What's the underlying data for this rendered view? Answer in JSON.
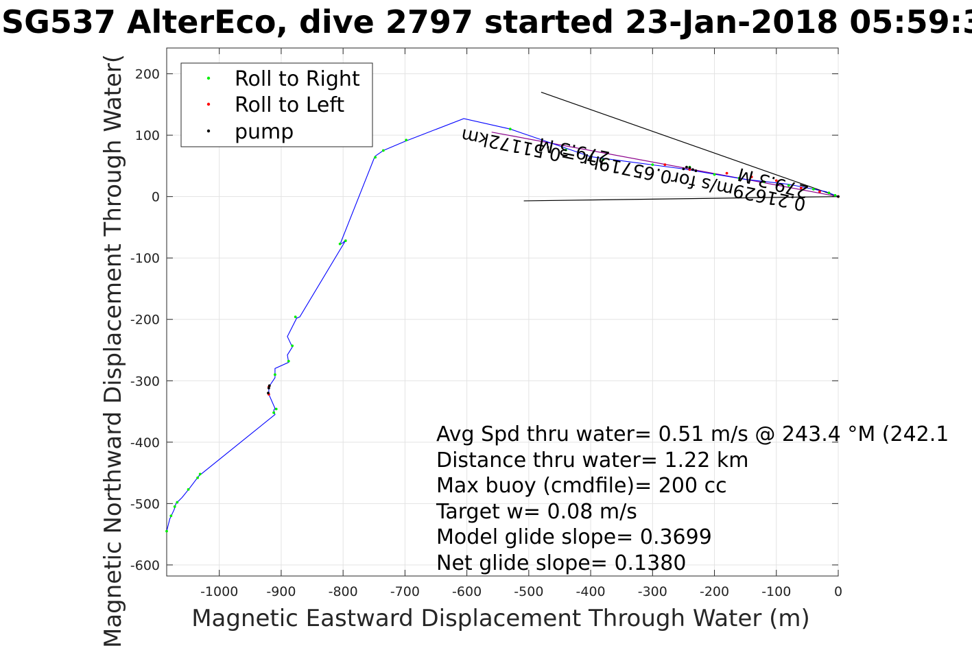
{
  "chart_data": {
    "type": "line",
    "title": "SG537 AlterEco, dive 2797 started 23-Jan-2018 05:59:3",
    "xlabel": "Magnetic Eastward Displacement Through Water (m)",
    "ylabel": "Magnetic Northward Displacement Through Water(",
    "xlim": [
      -1085,
      0
    ],
    "ylim": [
      -618,
      242
    ],
    "xticks": [
      -1000,
      -900,
      -800,
      -700,
      -600,
      -500,
      -400,
      -300,
      -200,
      -100,
      0
    ],
    "xtick_labels": [
      "-1000",
      "-900",
      "-800",
      "-700",
      "-600",
      "-500",
      "-400",
      "-300",
      "-200",
      "-100",
      "0"
    ],
    "yticks": [
      200,
      100,
      0,
      -100,
      -200,
      -300,
      -400,
      -500,
      -600
    ],
    "ytick_labels": [
      "200",
      "100",
      "0",
      "-100",
      "-200",
      "-300",
      "-400",
      "-500",
      "-600"
    ],
    "grid": true,
    "legend": {
      "placement": "top-left",
      "entries": [
        {
          "name": "Roll to Right",
          "color": "#00ee00"
        },
        {
          "name": "Roll to Left",
          "color": "#ff0000"
        },
        {
          "name": "pump",
          "color": "#000000"
        }
      ]
    },
    "track": {
      "color": "#0000ff",
      "x": [
        -1085,
        -1080,
        -1073,
        -1070,
        -1060,
        -1048,
        -1033,
        -910,
        -912,
        -910,
        -920,
        -920,
        -910,
        -910,
        -910,
        -888,
        -890,
        -882,
        -890,
        -875,
        -870,
        -795,
        -800,
        -805,
        -750,
        -748,
        -735,
        -700,
        -605,
        -530,
        -400,
        -250,
        -150,
        -80,
        -20,
        0
      ],
      "y": [
        -545,
        -525,
        -510,
        -500,
        -490,
        -475,
        -455,
        -355,
        -348,
        -345,
        -322,
        -310,
        -295,
        -285,
        -280,
        -270,
        -258,
        -245,
        -228,
        -198,
        -196,
        -70,
        -75,
        -78,
        62,
        66,
        75,
        90,
        127,
        110,
        65,
        45,
        28,
        20,
        8,
        0
      ]
    },
    "roll_right": {
      "x": [
        -1085,
        -1078,
        -1072,
        -1068,
        -1050,
        -1035,
        -1031,
        -912,
        -908,
        -910,
        -888,
        -882,
        -877,
        -796,
        -805,
        -748,
        -735,
        -698,
        -530,
        -440,
        -380,
        -300,
        -240,
        -200,
        -160,
        -120,
        -80,
        -40,
        -15,
        -5
      ],
      "y": [
        -545,
        -520,
        -505,
        -498,
        -477,
        -458,
        -452,
        -352,
        -346,
        -290,
        -268,
        -243,
        -196,
        -72,
        -77,
        64,
        75,
        92,
        110,
        76,
        60,
        52,
        48,
        36,
        30,
        24,
        18,
        12,
        6,
        2
      ]
    },
    "roll_left": {
      "x": [
        -920,
        -920,
        -280,
        -240,
        -180,
        -140,
        -100,
        -60,
        -30,
        0
      ],
      "y": [
        -322,
        -310,
        52,
        44,
        38,
        32,
        26,
        14,
        8,
        0
      ]
    },
    "pump": {
      "x": [
        -920,
        -921,
        -919,
        -250,
        -245,
        -240,
        -235,
        -230,
        0
      ],
      "y": [
        -312,
        -320,
        -308,
        45,
        48,
        47,
        44,
        42,
        0
      ]
    },
    "reference_lines": [
      {
        "x": [
          -480,
          0
        ],
        "y": [
          170,
          0
        ],
        "color": "#000000"
      },
      {
        "x": [
          -508,
          0
        ],
        "y": [
          -7,
          0
        ],
        "color": "#000000"
      },
      {
        "x": [
          -560,
          0
        ],
        "y": [
          105,
          0
        ],
        "color": "#8b008b"
      }
    ],
    "rotated_annotations": [
      "0.21629m/s for0.65719hr =0.51172km",
      "279.3 M",
      "279.3 M"
    ],
    "text_annotations": [
      "Avg Spd thru water=  0.51 m/s @ 243.4 °M (242.1",
      "Distance thru water=  1.22 km",
      "Max buoy (cmdfile)= 200 cc",
      "Target w= 0.08 m/s",
      "Model glide slope= 0.3699",
      "Net glide slope= 0.1380"
    ]
  }
}
